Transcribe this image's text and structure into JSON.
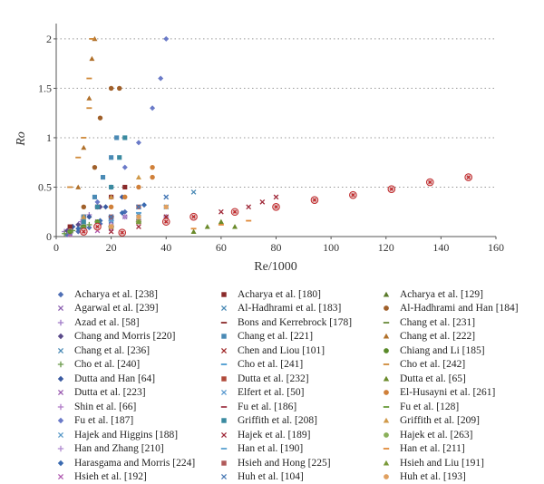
{
  "chart_data": {
    "type": "scatter",
    "title": "",
    "xlabel": "Re/1000",
    "ylabel": "Ro",
    "xlim": [
      0,
      160
    ],
    "ylim": [
      0,
      2.1
    ],
    "x_ticks": [
      "0",
      "20",
      "40",
      "60",
      "80",
      "100",
      "120",
      "140",
      "160"
    ],
    "y_ticks": [
      "0",
      "0.5",
      "1",
      "1.5",
      "2"
    ],
    "grid": "horizontal dotted",
    "legend_placement": "below, three columns",
    "series": [
      {
        "name": "Acharya et al. [238]",
        "symbol": "diamond",
        "color": "#4f6fb5",
        "points": [
          [
            4,
            0.02
          ],
          [
            8,
            0.05
          ],
          [
            12,
            0.09
          ],
          [
            16,
            0.13
          ],
          [
            20,
            0.18
          ],
          [
            25,
            0.25
          ]
        ]
      },
      {
        "name": "Agarwal et al. [239]",
        "symbol": "x",
        "color": "#8b5fb0",
        "points": [
          [
            5,
            0.03
          ],
          [
            10,
            0.07
          ],
          [
            15,
            0.1
          ],
          [
            20,
            0.15
          ],
          [
            25,
            0.2
          ]
        ]
      },
      {
        "name": "Azad et al. [58]",
        "symbol": "plus",
        "color": "#a07ac8",
        "points": [
          [
            3,
            0.05
          ],
          [
            6,
            0.1
          ],
          [
            9,
            0.15
          ],
          [
            12,
            0.22
          ],
          [
            15,
            0.3
          ]
        ]
      },
      {
        "name": "Chang and Morris [220]",
        "symbol": "diamond",
        "color": "#5a4a8a",
        "points": [
          [
            4,
            0.06
          ],
          [
            8,
            0.12
          ],
          [
            12,
            0.2
          ],
          [
            16,
            0.3
          ],
          [
            20,
            0.4
          ]
        ]
      },
      {
        "name": "Chang et al. [236]",
        "symbol": "x",
        "color": "#4a8ab5",
        "points": [
          [
            5,
            0.04
          ],
          [
            10,
            0.08
          ],
          [
            15,
            0.12
          ],
          [
            20,
            0.16
          ],
          [
            30,
            0.22
          ]
        ]
      },
      {
        "name": "Cho et al. [240]",
        "symbol": "plus",
        "color": "#6a9a4a",
        "points": [
          [
            3,
            0.03
          ],
          [
            6,
            0.06
          ],
          [
            9,
            0.09
          ],
          [
            12,
            0.12
          ]
        ]
      },
      {
        "name": "Dutta and Han [64]",
        "symbol": "diamond",
        "color": "#3a5aa0",
        "points": [
          [
            6,
            0.1
          ],
          [
            12,
            0.2
          ],
          [
            18,
            0.3
          ],
          [
            24,
            0.4
          ]
        ]
      },
      {
        "name": "Dutta et al. [223]",
        "symbol": "x",
        "color": "#9a5ab0",
        "points": [
          [
            5,
            0.05
          ],
          [
            10,
            0.1
          ],
          [
            15,
            0.15
          ],
          [
            20,
            0.2
          ]
        ]
      },
      {
        "name": "Shin et al. [66]",
        "symbol": "plus",
        "color": "#b07ac8",
        "points": [
          [
            10,
            0.05
          ],
          [
            20,
            0.1
          ],
          [
            30,
            0.15
          ],
          [
            40,
            0.2
          ]
        ]
      },
      {
        "name": "Fu et al. [187]",
        "symbol": "diamond",
        "color": "#6a7ac8",
        "points": [
          [
            10,
            0.2
          ],
          [
            15,
            0.35
          ],
          [
            20,
            0.5
          ],
          [
            25,
            0.7
          ],
          [
            30,
            0.95
          ],
          [
            35,
            1.3
          ],
          [
            38,
            1.6
          ],
          [
            40,
            2.0
          ]
        ]
      },
      {
        "name": "Hajek and Higgins [188]",
        "symbol": "x",
        "color": "#5a9ac8",
        "points": [
          [
            10,
            0.05
          ],
          [
            20,
            0.1
          ],
          [
            30,
            0.15
          ],
          [
            40,
            0.2
          ]
        ]
      },
      {
        "name": "Han and Zhang [210]",
        "symbol": "plus",
        "color": "#b08ad0",
        "points": [
          [
            5,
            0.04
          ],
          [
            10,
            0.08
          ],
          [
            15,
            0.12
          ],
          [
            20,
            0.16
          ],
          [
            25,
            0.2
          ]
        ]
      },
      {
        "name": "Harasgama and Morris [224]",
        "symbol": "diamond",
        "color": "#3a6ab0",
        "points": [
          [
            8,
            0.08
          ],
          [
            16,
            0.16
          ],
          [
            24,
            0.24
          ],
          [
            32,
            0.32
          ]
        ]
      },
      {
        "name": "Hsieh et al. [192]",
        "symbol": "x",
        "color": "#b05ab0",
        "points": [
          [
            5,
            0.02
          ],
          [
            10,
            0.04
          ],
          [
            15,
            0.06
          ],
          [
            20,
            0.08
          ]
        ]
      },
      {
        "name": "Acharya et al. [180]",
        "symbol": "square",
        "color": "#8a2a2a",
        "points": [
          [
            5,
            0.1
          ],
          [
            10,
            0.2
          ],
          [
            15,
            0.3
          ],
          [
            20,
            0.4
          ],
          [
            25,
            0.5
          ]
        ]
      },
      {
        "name": "Al-Hadhrami et al. [183]",
        "symbol": "x",
        "color": "#4a8ab5",
        "points": [
          [
            20,
            0.1
          ],
          [
            30,
            0.2
          ],
          [
            40,
            0.3
          ],
          [
            50,
            0.45
          ]
        ]
      },
      {
        "name": "Bons and Kerrebrock [178]",
        "symbol": "dash",
        "color": "#8a2a2a",
        "points": [
          [
            5,
            0.05
          ],
          [
            10,
            0.1
          ],
          [
            15,
            0.15
          ],
          [
            20,
            0.2
          ]
        ]
      },
      {
        "name": "Chang et al. [221]",
        "symbol": "square",
        "color": "#4a8ab5",
        "points": [
          [
            10,
            0.2
          ],
          [
            14,
            0.4
          ],
          [
            17,
            0.6
          ],
          [
            20,
            0.8
          ],
          [
            22,
            1.0
          ]
        ]
      },
      {
        "name": "Chen and Liou [101]",
        "symbol": "x",
        "color": "#a02a2a",
        "points": [
          [
            10,
            0.05
          ],
          [
            20,
            0.1
          ],
          [
            30,
            0.15
          ],
          [
            40,
            0.2
          ]
        ]
      },
      {
        "name": "Cho et al. [241]",
        "symbol": "dash",
        "color": "#4a9ad0",
        "points": [
          [
            5,
            0.05
          ],
          [
            10,
            0.1
          ],
          [
            15,
            0.15
          ],
          [
            20,
            0.2
          ]
        ]
      },
      {
        "name": "Dutta et al. [232]",
        "symbol": "square",
        "color": "#b04a3a",
        "points": [
          [
            10,
            0.1
          ],
          [
            20,
            0.2
          ],
          [
            30,
            0.3
          ]
        ]
      },
      {
        "name": "Elfert et al. [50]",
        "symbol": "x",
        "color": "#5a9ad0",
        "points": [
          [
            10,
            0.1
          ],
          [
            20,
            0.2
          ],
          [
            30,
            0.3
          ],
          [
            40,
            0.4
          ]
        ]
      },
      {
        "name": "Fu et al. [186]",
        "symbol": "dash",
        "color": "#a03a4a",
        "points": [
          [
            10,
            0.05
          ],
          [
            20,
            0.1
          ],
          [
            30,
            0.15
          ]
        ]
      },
      {
        "name": "Griffith et al. [208]",
        "symbol": "square",
        "color": "#3a8aa0",
        "points": [
          [
            10,
            0.15
          ],
          [
            15,
            0.3
          ],
          [
            20,
            0.5
          ],
          [
            23,
            0.8
          ],
          [
            25,
            1.0
          ]
        ]
      },
      {
        "name": "Hajek et al. [189]",
        "symbol": "x",
        "color": "#a02a3a",
        "points": [
          [
            20,
            0.05
          ],
          [
            30,
            0.1
          ],
          [
            40,
            0.15
          ],
          [
            50,
            0.2
          ],
          [
            60,
            0.25
          ],
          [
            70,
            0.3
          ],
          [
            75,
            0.35
          ],
          [
            80,
            0.4
          ]
        ]
      },
      {
        "name": "Han et al. [190]",
        "symbol": "dash",
        "color": "#5aa0d0",
        "points": [
          [
            10,
            0.08
          ],
          [
            20,
            0.16
          ],
          [
            30,
            0.24
          ]
        ]
      },
      {
        "name": "Hsieh and Hong [225]",
        "symbol": "square",
        "color": "#b05a5a",
        "points": [
          [
            10,
            0.05
          ],
          [
            20,
            0.1
          ],
          [
            30,
            0.15
          ]
        ]
      },
      {
        "name": "Huh et al. [104]",
        "symbol": "x",
        "color": "#4a7ab5",
        "points": [
          [
            10,
            0.1
          ],
          [
            20,
            0.2
          ],
          [
            30,
            0.3
          ],
          [
            40,
            0.4
          ]
        ]
      },
      {
        "name": "Acharya et al. [129]",
        "symbol": "triangle",
        "color": "#5a7a2a",
        "points": [
          [
            10,
            0.05
          ],
          [
            20,
            0.1
          ],
          [
            30,
            0.15
          ]
        ]
      },
      {
        "name": "Al-Hadhrami and Han [184]",
        "symbol": "circle",
        "color": "#a0602a",
        "points": [
          [
            10,
            0.3
          ],
          [
            14,
            0.7
          ],
          [
            16,
            1.2
          ],
          [
            20,
            1.5
          ],
          [
            23,
            1.5
          ]
        ]
      },
      {
        "name": "Chang et al. [231]",
        "symbol": "dash",
        "color": "#6a8a3a",
        "points": [
          [
            10,
            0.05
          ],
          [
            20,
            0.1
          ],
          [
            30,
            0.15
          ]
        ]
      },
      {
        "name": "Chang et al. [222]",
        "symbol": "triangle",
        "color": "#b0702a",
        "points": [
          [
            8,
            0.5
          ],
          [
            10,
            0.9
          ],
          [
            12,
            1.4
          ],
          [
            13,
            1.8
          ],
          [
            14,
            2.0
          ]
        ]
      },
      {
        "name": "Chiang and Li [185]",
        "symbol": "circle",
        "color": "#5a8a2a",
        "points": [
          [
            5,
            0.05
          ],
          [
            10,
            0.1
          ],
          [
            15,
            0.15
          ]
        ]
      },
      {
        "name": "Cho et al. [242]",
        "symbol": "dash",
        "color": "#d08a3a",
        "points": [
          [
            5,
            0.5
          ],
          [
            8,
            0.8
          ],
          [
            10,
            1.0
          ],
          [
            12,
            1.3
          ],
          [
            12,
            1.6
          ],
          [
            13,
            2.0
          ]
        ]
      },
      {
        "name": "Dutta et al. [65]",
        "symbol": "triangle",
        "color": "#6a8a2a",
        "points": [
          [
            50,
            0.05
          ],
          [
            55,
            0.1
          ],
          [
            60,
            0.15
          ],
          [
            65,
            0.1
          ]
        ]
      },
      {
        "name": "El-Husayni et al. [261]",
        "symbol": "circle",
        "color": "#d0803a",
        "points": [
          [
            20,
            0.3
          ],
          [
            25,
            0.4
          ],
          [
            30,
            0.5
          ],
          [
            35,
            0.6
          ],
          [
            35,
            0.7
          ]
        ]
      },
      {
        "name": "Fu et al. [128]",
        "symbol": "dash",
        "color": "#6a9a3a",
        "points": [
          [
            5,
            0.05
          ],
          [
            10,
            0.1
          ],
          [
            15,
            0.15
          ]
        ]
      },
      {
        "name": "Griffith et al. [209]",
        "symbol": "triangle",
        "color": "#d09a4a",
        "points": [
          [
            10,
            0.2
          ],
          [
            20,
            0.4
          ],
          [
            30,
            0.6
          ]
        ]
      },
      {
        "name": "Hajek et al. [263]",
        "symbol": "circle",
        "color": "#8ab05a",
        "points": [
          [
            10,
            0.05
          ],
          [
            20,
            0.1
          ],
          [
            30,
            0.15
          ]
        ]
      },
      {
        "name": "Han et al. [211]",
        "symbol": "dash",
        "color": "#e08a3a",
        "points": [
          [
            50,
            0.08
          ],
          [
            60,
            0.12
          ],
          [
            70,
            0.16
          ]
        ]
      },
      {
        "name": "Hsieh and Liu [191]",
        "symbol": "triangle",
        "color": "#7a9a3a",
        "points": [
          [
            10,
            0.05
          ],
          [
            20,
            0.1
          ],
          [
            30,
            0.15
          ]
        ]
      },
      {
        "name": "Huh et al. [193]",
        "symbol": "circle",
        "color": "#e0a060",
        "points": [
          [
            20,
            0.1
          ],
          [
            30,
            0.2
          ],
          [
            40,
            0.3
          ]
        ]
      },
      {
        "name": "",
        "symbol": "target",
        "color": "#c0282a",
        "points": [
          [
            10,
            0.05
          ],
          [
            15,
            0.1
          ],
          [
            24,
            0.04
          ],
          [
            40,
            0.15
          ],
          [
            50,
            0.2
          ],
          [
            65,
            0.25
          ],
          [
            80,
            0.3
          ],
          [
            94,
            0.37
          ],
          [
            108,
            0.42
          ],
          [
            122,
            0.48
          ],
          [
            136,
            0.55
          ],
          [
            150,
            0.6
          ]
        ]
      }
    ]
  }
}
